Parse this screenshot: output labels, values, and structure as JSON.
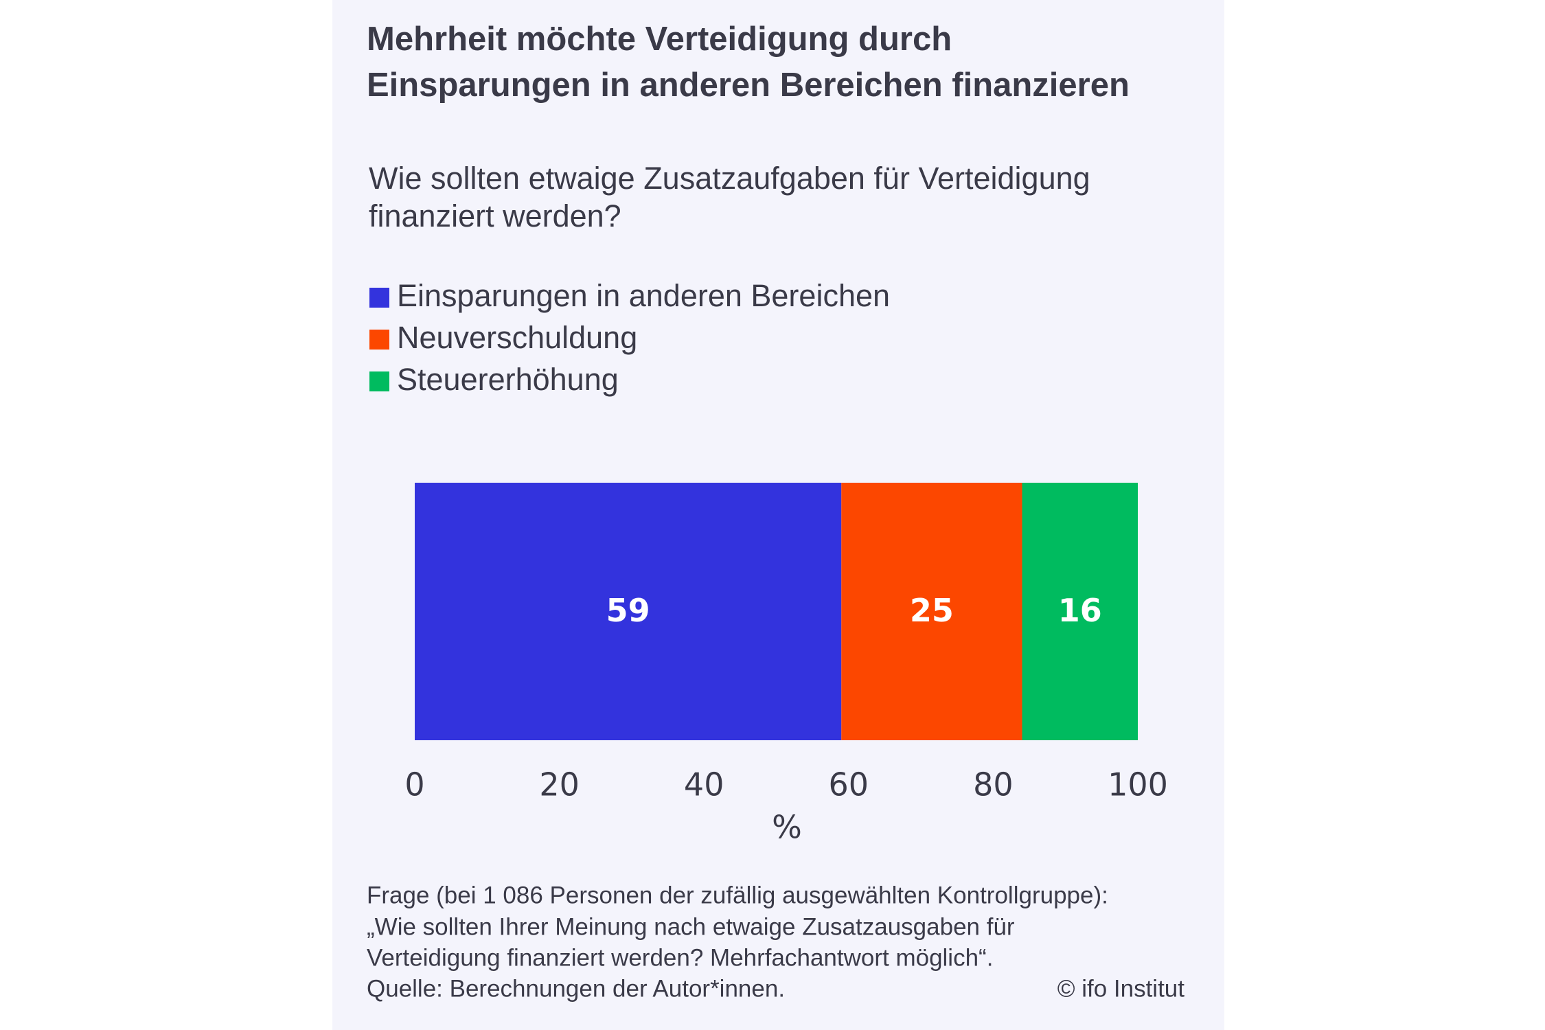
{
  "chart_data": {
    "type": "stacked-bar-horizontal",
    "title": [
      "Mehrheit möchte Verteidigung durch",
      "Einsparungen in anderen Bereichen finanzieren"
    ],
    "subtitle": [
      "Wie sollten etwaige Zusatzaufgaben für Verteidigung",
      "finanziert werden?"
    ],
    "categories": [
      null
    ],
    "series": [
      {
        "name": "Einsparungen in anderen Bereichen",
        "color": "#3333dd",
        "values": [
          59
        ]
      },
      {
        "name": "Neuverschuldung",
        "color": "#fc4700",
        "values": [
          25
        ]
      },
      {
        "name": "Steuererhöhung",
        "color": "#00bb5f",
        "values": [
          16
        ]
      }
    ],
    "xlim": [
      0,
      100
    ],
    "xticks": [
      0,
      20,
      40,
      60,
      80,
      100
    ],
    "xlabel": "%",
    "notes": [
      "Frage (bei 1 086 Personen der zufällig ausgewählten Kontrollgruppe):",
      "„Wie sollten Ihrer Meinung nach etwaige Zusatzausgaben für",
      "Verteidigung finanziert werden? Mehrfachantwort möglich“."
    ],
    "source": "Quelle: Berechnungen der Autor*innen.",
    "copyright": "© ifo Institut"
  }
}
